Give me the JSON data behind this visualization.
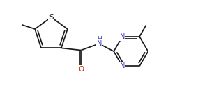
{
  "bg_color": "#ffffff",
  "line_color": "#1a1a1a",
  "atom_colors": {
    "S": "#1a1a1a",
    "N": "#4040c0",
    "O": "#cc2200",
    "H": "#1a1a1a",
    "C": "#1a1a1a"
  },
  "font_size": 7.0,
  "line_width": 1.25,
  "figsize": [
    3.17,
    1.4
  ],
  "dpi": 100,
  "xlim": [
    0,
    10
  ],
  "ylim": [
    0,
    4.4
  ]
}
